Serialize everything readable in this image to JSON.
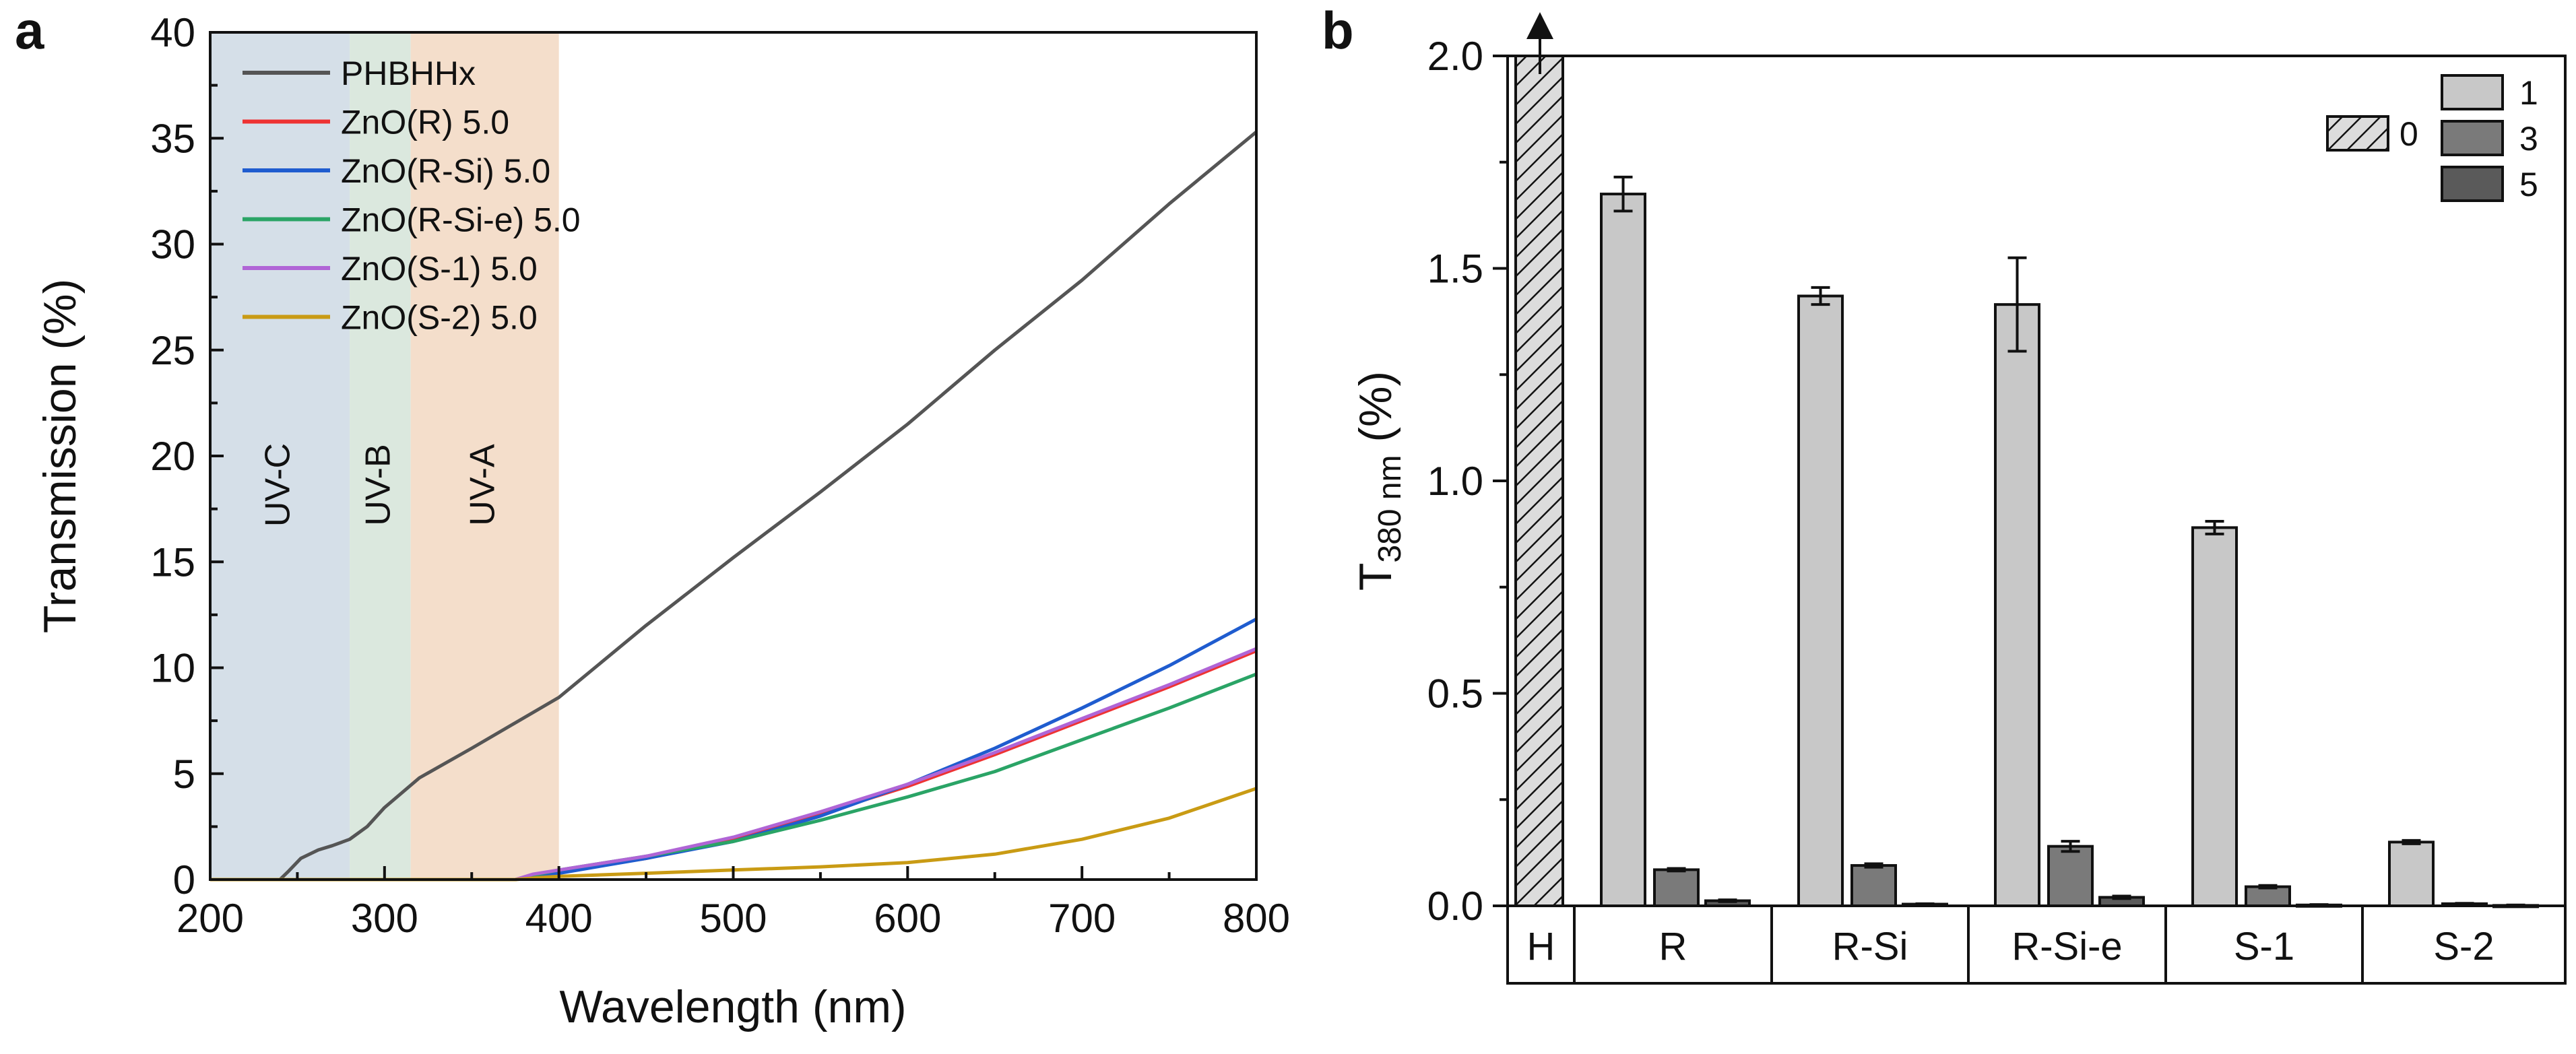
{
  "chart_data": [
    {
      "panel_label": "a",
      "type": "line",
      "xlabel": "Wavelength (nm)",
      "ylabel": "Transmission (%)",
      "xlim": [
        200,
        800
      ],
      "ylim": [
        0,
        40
      ],
      "xticks": [
        200,
        300,
        400,
        500,
        600,
        700,
        800
      ],
      "yticks": [
        0,
        5,
        10,
        15,
        20,
        25,
        30,
        35,
        40
      ],
      "regions": [
        {
          "name": "UV-C",
          "from": 200,
          "to": 280,
          "color": "#d5dfe8"
        },
        {
          "name": "UV-B",
          "from": 280,
          "to": 315,
          "color": "#dbe8de"
        },
        {
          "name": "UV-A",
          "from": 315,
          "to": 400,
          "color": "#f4decb"
        }
      ],
      "legend_position": "top-left",
      "series": [
        {
          "name": "PHBHHx",
          "color": "#555555",
          "x": [
            200,
            240,
            245,
            252,
            262,
            270,
            280,
            290,
            300,
            320,
            350,
            400,
            450,
            500,
            550,
            600,
            650,
            700,
            750,
            800
          ],
          "y": [
            0,
            0,
            0.4,
            1.0,
            1.4,
            1.6,
            1.9,
            2.5,
            3.4,
            4.8,
            6.2,
            8.6,
            12.0,
            15.2,
            18.3,
            21.5,
            25.0,
            28.3,
            31.9,
            35.3
          ]
        },
        {
          "name": "ZnO(R) 5.0",
          "color": "#ee3333",
          "x": [
            200,
            375,
            385,
            400,
            450,
            500,
            550,
            600,
            650,
            700,
            750,
            800
          ],
          "y": [
            0,
            0,
            0.2,
            0.35,
            1.0,
            1.9,
            3.1,
            4.4,
            5.9,
            7.5,
            9.1,
            10.8
          ]
        },
        {
          "name": "ZnO(R-Si) 5.0",
          "color": "#1f5ccf",
          "x": [
            200,
            375,
            385,
            400,
            450,
            500,
            550,
            600,
            650,
            700,
            750,
            800
          ],
          "y": [
            0,
            0,
            0.2,
            0.3,
            1.0,
            1.8,
            3.0,
            4.5,
            6.2,
            8.1,
            10.1,
            12.3
          ]
        },
        {
          "name": "ZnO(R-Si-e) 5.0",
          "color": "#2aa466",
          "x": [
            200,
            375,
            385,
            400,
            450,
            500,
            550,
            600,
            650,
            700,
            750,
            800
          ],
          "y": [
            0,
            0,
            0.2,
            0.45,
            1.1,
            1.8,
            2.8,
            3.9,
            5.1,
            6.6,
            8.1,
            9.7
          ]
        },
        {
          "name": "ZnO(S-1) 5.0",
          "color": "#b065d6",
          "x": [
            200,
            375,
            385,
            400,
            450,
            500,
            550,
            600,
            650,
            700,
            750,
            800
          ],
          "y": [
            0,
            0,
            0.25,
            0.45,
            1.1,
            2.0,
            3.2,
            4.5,
            6.0,
            7.6,
            9.2,
            10.9
          ]
        },
        {
          "name": "ZnO(S-2) 5.0",
          "color": "#c99b14",
          "x": [
            200,
            375,
            390,
            400,
            450,
            500,
            550,
            600,
            650,
            700,
            750,
            800
          ],
          "y": [
            0,
            0,
            0.1,
            0.15,
            0.3,
            0.45,
            0.6,
            0.8,
            1.2,
            1.9,
            2.9,
            4.3
          ]
        }
      ]
    },
    {
      "panel_label": "b",
      "type": "bar",
      "ylabel_main": "T",
      "ylabel_sub": "380 nm",
      "ylabel_unit": " (%)",
      "ylim": [
        0,
        2.0
      ],
      "yticks": [
        "0.0",
        "0.5",
        "1.0",
        "1.5",
        "2.0"
      ],
      "categories": [
        "H",
        "R",
        "R-Si",
        "R-Si-e",
        "S-1",
        "S-2"
      ],
      "reference_bar": {
        "category": "H",
        "series": "0",
        "value": 2.0,
        "note": "off-scale, arrow up"
      },
      "series": [
        {
          "name": "1",
          "color": "#c8c8c8",
          "values": [
            null,
            1.675,
            1.435,
            1.415,
            0.89,
            0.15
          ],
          "errors": [
            null,
            0.04,
            0.02,
            0.11,
            0.015,
            0.004
          ]
        },
        {
          "name": "3",
          "color": "#7a7a7a",
          "values": [
            null,
            0.085,
            0.095,
            0.14,
            0.045,
            0.005
          ],
          "errors": [
            null,
            0.003,
            0.004,
            0.012,
            0.003,
            0.001
          ]
        },
        {
          "name": "5",
          "color": "#5a5a5a",
          "values": [
            null,
            0.012,
            0.004,
            0.02,
            0.002,
            0.001
          ],
          "errors": [
            null,
            0.002,
            0.001,
            0.003,
            0.001,
            0.001
          ]
        }
      ],
      "legend": {
        "hatched_label": "0",
        "entries": [
          "1",
          "3",
          "5"
        ],
        "position": "top-right"
      }
    }
  ]
}
